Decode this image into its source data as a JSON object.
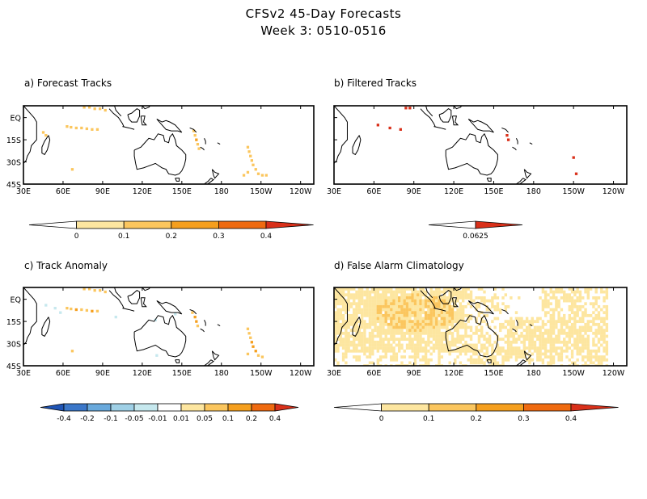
{
  "header": {
    "title": "CFSv2 45-Day Forecasts",
    "subtitle": "Week 3: 0510-0516"
  },
  "colors": {
    "c1": "#fde6a0",
    "c2": "#fbc65e",
    "c3": "#f59f1e",
    "c4": "#ef6a10",
    "c5": "#d9301a",
    "neg1": "#c6e8ee",
    "neg2": "#9fd0e6",
    "neg3": "#69a9dc",
    "neg4": "#3b77c9",
    "neg5": "#1f54b5",
    "land_outline": "#000000"
  },
  "chart_data": [
    {
      "type": "heatmap",
      "panel_title": "a) Forecast Tracks",
      "x_ticks": [
        "30E",
        "60E",
        "90E",
        "120E",
        "150E",
        "180",
        "150W",
        "120W"
      ],
      "y_ticks": [
        "EQ",
        "15S",
        "30S",
        "45S"
      ],
      "xlim": [
        30,
        250
      ],
      "ylim": [
        -45,
        8
      ],
      "colorbar": {
        "labels": [
          "0",
          "0.1",
          "0.2",
          "0.3",
          "0.4"
        ]
      },
      "cells": [
        {
          "lon": 76,
          "lat": 7,
          "v": 0.1
        },
        {
          "lon": 80,
          "lat": 7,
          "v": 0.1
        },
        {
          "lon": 84,
          "lat": 6,
          "v": 0.1
        },
        {
          "lon": 88,
          "lat": 6,
          "v": 0.12
        },
        {
          "lon": 92,
          "lat": 5,
          "v": 0.1
        },
        {
          "lon": 63,
          "lat": -6,
          "v": 0.1
        },
        {
          "lon": 66,
          "lat": -6.5,
          "v": 0.12
        },
        {
          "lon": 70,
          "lat": -7,
          "v": 0.15
        },
        {
          "lon": 74,
          "lat": -7,
          "v": 0.12
        },
        {
          "lon": 78,
          "lat": -7.5,
          "v": 0.12
        },
        {
          "lon": 82,
          "lat": -8,
          "v": 0.15
        },
        {
          "lon": 86,
          "lat": -8,
          "v": 0.12
        },
        {
          "lon": 45,
          "lat": -10,
          "v": 0.1
        },
        {
          "lon": 47,
          "lat": -12,
          "v": 0.12
        },
        {
          "lon": 159,
          "lat": -9,
          "v": 0.12
        },
        {
          "lon": 160,
          "lat": -12,
          "v": 0.15
        },
        {
          "lon": 161,
          "lat": -15,
          "v": 0.2
        },
        {
          "lon": 162,
          "lat": -18,
          "v": 0.15
        },
        {
          "lon": 163,
          "lat": -21,
          "v": 0.1
        },
        {
          "lon": 200,
          "lat": -20,
          "v": 0.1
        },
        {
          "lon": 201,
          "lat": -23,
          "v": 0.1
        },
        {
          "lon": 202,
          "lat": -26,
          "v": 0.12
        },
        {
          "lon": 203,
          "lat": -29,
          "v": 0.12
        },
        {
          "lon": 204,
          "lat": -32,
          "v": 0.15
        },
        {
          "lon": 206,
          "lat": -35,
          "v": 0.12
        },
        {
          "lon": 208,
          "lat": -38,
          "v": 0.1
        },
        {
          "lon": 211,
          "lat": -39,
          "v": 0.1
        },
        {
          "lon": 214,
          "lat": -39,
          "v": 0.1
        },
        {
          "lon": 200,
          "lat": -37,
          "v": 0.1
        },
        {
          "lon": 197,
          "lat": -39,
          "v": 0.1
        },
        {
          "lon": 67,
          "lat": -35,
          "v": 0.1
        }
      ]
    },
    {
      "type": "heatmap",
      "panel_title": "b) Filtered Tracks",
      "x_ticks": [
        "30E",
        "60E",
        "90E",
        "120E",
        "150E",
        "180",
        "150W",
        "120W"
      ],
      "y_ticks": [],
      "xlim": [
        30,
        250
      ],
      "ylim": [
        -45,
        8
      ],
      "colorbar": {
        "labels": [
          "0.0625"
        ]
      },
      "cells": [
        {
          "lon": 84,
          "lat": 6.5,
          "v": 0.0625
        },
        {
          "lon": 87,
          "lat": 6.5,
          "v": 0.0625
        },
        {
          "lon": 63,
          "lat": -5,
          "v": 0.0625
        },
        {
          "lon": 72,
          "lat": -7,
          "v": 0.0625
        },
        {
          "lon": 80,
          "lat": -8,
          "v": 0.0625
        },
        {
          "lon": 160,
          "lat": -12,
          "v": 0.0625
        },
        {
          "lon": 161,
          "lat": -15,
          "v": 0.0625
        },
        {
          "lon": 210,
          "lat": -27,
          "v": 0.0625
        },
        {
          "lon": 212,
          "lat": -38,
          "v": 0.0625
        }
      ]
    },
    {
      "type": "heatmap",
      "panel_title": "c) Track Anomaly",
      "x_ticks": [
        "30E",
        "60E",
        "90E",
        "120E",
        "150E",
        "180",
        "150W",
        "120W"
      ],
      "y_ticks": [
        "EQ",
        "15S",
        "30S",
        "45S"
      ],
      "xlim": [
        30,
        250
      ],
      "ylim": [
        -45,
        8
      ],
      "colorbar": {
        "labels": [
          "-0.4",
          "-0.2",
          "-0.1",
          "-0.05",
          "-0.01",
          "0.01",
          "0.05",
          "0.1",
          "0.2",
          "0.4"
        ]
      },
      "cells": [
        {
          "lon": 76,
          "lat": 7,
          "v": 0.05
        },
        {
          "lon": 80,
          "lat": 7,
          "v": 0.05
        },
        {
          "lon": 84,
          "lat": 6,
          "v": 0.05
        },
        {
          "lon": 88,
          "lat": 6,
          "v": 0.06
        },
        {
          "lon": 92,
          "lat": 5,
          "v": 0.05
        },
        {
          "lon": 63,
          "lat": -6,
          "v": 0.06
        },
        {
          "lon": 66,
          "lat": -6.5,
          "v": 0.08
        },
        {
          "lon": 70,
          "lat": -7,
          "v": 0.1
        },
        {
          "lon": 74,
          "lat": -7,
          "v": 0.08
        },
        {
          "lon": 78,
          "lat": -7.5,
          "v": 0.08
        },
        {
          "lon": 82,
          "lat": -8,
          "v": 0.1
        },
        {
          "lon": 86,
          "lat": -8,
          "v": 0.06
        },
        {
          "lon": 54,
          "lat": -6,
          "v": -0.02
        },
        {
          "lon": 58,
          "lat": -9,
          "v": -0.02
        },
        {
          "lon": 47,
          "lat": -4,
          "v": -0.02
        },
        {
          "lon": 100,
          "lat": -12,
          "v": -0.02
        },
        {
          "lon": 130,
          "lat": -14,
          "v": -0.02
        },
        {
          "lon": 145,
          "lat": -10,
          "v": -0.02
        },
        {
          "lon": 158,
          "lat": -9,
          "v": 0.06
        },
        {
          "lon": 160,
          "lat": -12,
          "v": 0.12
        },
        {
          "lon": 161,
          "lat": -15,
          "v": 0.15
        },
        {
          "lon": 162,
          "lat": -18,
          "v": 0.08
        },
        {
          "lon": 200,
          "lat": -20,
          "v": 0.05
        },
        {
          "lon": 201,
          "lat": -23,
          "v": 0.06
        },
        {
          "lon": 202,
          "lat": -26,
          "v": 0.08
        },
        {
          "lon": 203,
          "lat": -29,
          "v": 0.1
        },
        {
          "lon": 204,
          "lat": -32,
          "v": 0.1
        },
        {
          "lon": 206,
          "lat": -35,
          "v": 0.12
        },
        {
          "lon": 208,
          "lat": -38,
          "v": 0.08
        },
        {
          "lon": 211,
          "lat": -39,
          "v": 0.06
        },
        {
          "lon": 200,
          "lat": -37,
          "v": 0.06
        },
        {
          "lon": 67,
          "lat": -35,
          "v": 0.05
        },
        {
          "lon": 131,
          "lat": -38,
          "v": -0.02
        }
      ]
    },
    {
      "type": "heatmap",
      "panel_title": "d) False Alarm Climatology",
      "x_ticks": [
        "30E",
        "60E",
        "90E",
        "120E",
        "150E",
        "180",
        "150W",
        "120W"
      ],
      "y_ticks": [],
      "xlim": [
        30,
        250
      ],
      "ylim": [
        -45,
        8
      ],
      "colorbar": {
        "labels": [
          "0",
          "0.1",
          "0.2",
          "0.3",
          "0.4"
        ]
      },
      "density_field": {
        "description_values": "dense low-probability field (about 0.05-0.15) covering most of the Indian Ocean and the tropical western and southwest Pacific; densest near 80E-100E, 0-15S",
        "max_value": 0.15
      }
    }
  ]
}
